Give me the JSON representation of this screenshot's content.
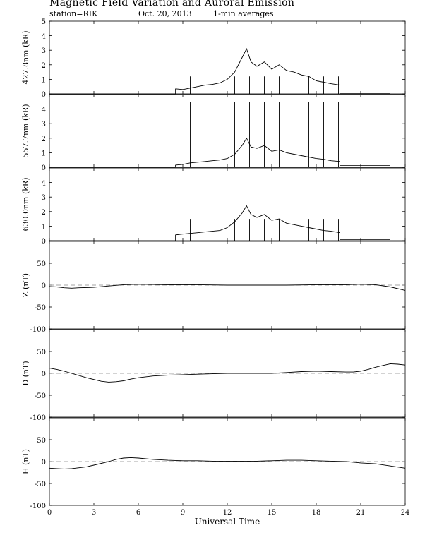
{
  "header": {
    "title": "Magnetic Field Variation and Auroral Emission",
    "station": "station=RIK",
    "date": "Oct. 20, 2013",
    "averaging": "1-min averages"
  },
  "chart_data": [
    {
      "type": "line",
      "ylabel": "427.8nm (kR)",
      "ylim": [
        0,
        5
      ],
      "yticks": [
        0,
        1,
        2,
        3,
        4,
        5
      ],
      "xlim": [
        0,
        24
      ],
      "baseline": 0,
      "x": [
        8.5,
        9.0,
        9.5,
        10.0,
        10.5,
        11.0,
        11.5,
        12.0,
        12.5,
        13.0,
        13.3,
        13.6,
        14.0,
        14.5,
        15.0,
        15.5,
        16.0,
        16.5,
        17.0,
        17.5,
        18.0,
        18.5,
        19.0,
        19.6
      ],
      "y": [
        0.35,
        0.3,
        0.4,
        0.5,
        0.6,
        0.65,
        0.75,
        1.0,
        1.5,
        2.5,
        3.1,
        2.2,
        1.9,
        2.2,
        1.7,
        2.0,
        1.6,
        1.5,
        1.3,
        1.2,
        0.9,
        0.8,
        0.7,
        0.6
      ],
      "spikes": [
        9.5,
        10.5,
        11.5,
        12.5,
        13.5,
        14.5,
        15.5,
        16.5,
        17.5,
        18.5,
        19.5
      ],
      "spike_height": 1.2,
      "after_value": 0.02
    },
    {
      "type": "line",
      "ylabel": "557.7nm (kR)",
      "ylim": [
        0,
        5
      ],
      "yticks": [
        0,
        1,
        2,
        3,
        4
      ],
      "xlim": [
        0,
        24
      ],
      "baseline": 0,
      "x": [
        8.5,
        9.0,
        9.5,
        10.0,
        10.5,
        11.0,
        11.5,
        12.0,
        12.5,
        13.0,
        13.3,
        13.6,
        14.0,
        14.5,
        15.0,
        15.5,
        16.0,
        16.5,
        17.0,
        17.5,
        18.0,
        18.5,
        19.0,
        19.6
      ],
      "y": [
        0.15,
        0.2,
        0.3,
        0.35,
        0.4,
        0.45,
        0.5,
        0.6,
        0.9,
        1.5,
        2.0,
        1.4,
        1.3,
        1.5,
        1.1,
        1.2,
        1.0,
        0.9,
        0.8,
        0.7,
        0.6,
        0.55,
        0.45,
        0.4
      ],
      "spikes": [
        9.5,
        10.5,
        11.5,
        12.5,
        13.5,
        14.5,
        15.5,
        16.5,
        17.5,
        18.5,
        19.5
      ],
      "spike_height": 4.5,
      "after_value": 0.12
    },
    {
      "type": "line",
      "ylabel": "630.0nm (kR)",
      "ylim": [
        0,
        5
      ],
      "yticks": [
        0,
        1,
        2,
        3,
        4
      ],
      "xlim": [
        0,
        24
      ],
      "baseline": 0,
      "x": [
        8.5,
        9.0,
        9.5,
        10.0,
        10.5,
        11.0,
        11.5,
        12.0,
        12.5,
        13.0,
        13.3,
        13.6,
        14.0,
        14.5,
        15.0,
        15.5,
        16.0,
        16.5,
        17.0,
        17.5,
        18.0,
        18.5,
        19.0,
        19.6
      ],
      "y": [
        0.4,
        0.45,
        0.5,
        0.55,
        0.6,
        0.65,
        0.7,
        0.9,
        1.3,
        1.9,
        2.4,
        1.8,
        1.6,
        1.8,
        1.4,
        1.5,
        1.2,
        1.1,
        1.0,
        0.9,
        0.8,
        0.7,
        0.65,
        0.55
      ],
      "spikes": [
        9.5,
        10.5,
        11.5,
        12.5,
        13.5,
        14.5,
        15.5,
        16.5,
        17.5,
        18.5,
        19.5
      ],
      "spike_height": 1.5,
      "after_value": 0.08
    },
    {
      "type": "line",
      "ylabel": "Z (nT)",
      "ylim": [
        -100,
        100
      ],
      "yticks": [
        -100,
        -50,
        0,
        50
      ],
      "xlim": [
        0,
        24
      ],
      "zero_line": true,
      "x": [
        0,
        0.5,
        1,
        1.5,
        2,
        3,
        4,
        5,
        6,
        8,
        10,
        12,
        14,
        16,
        18,
        20,
        21,
        22,
        23,
        24
      ],
      "y": [
        -3,
        -4,
        -6,
        -7,
        -6,
        -5,
        -2,
        1,
        2,
        1,
        1,
        0,
        0,
        0,
        1,
        1,
        2,
        1,
        -4,
        -12
      ]
    },
    {
      "type": "line",
      "ylabel": "D (nT)",
      "ylim": [
        -100,
        100
      ],
      "yticks": [
        -100,
        -50,
        0,
        50
      ],
      "xlim": [
        0,
        24
      ],
      "zero_line": true,
      "x": [
        0,
        0.5,
        1,
        1.5,
        2,
        2.5,
        3,
        3.5,
        4,
        4.5,
        5,
        5.5,
        6,
        7,
        8,
        9,
        10,
        11,
        12,
        13,
        14,
        15,
        16,
        17,
        18,
        19,
        20,
        20.5,
        21,
        21.5,
        22,
        22.5,
        23,
        23.5,
        24
      ],
      "y": [
        12,
        9,
        5,
        0,
        -5,
        -10,
        -14,
        -18,
        -20,
        -19,
        -17,
        -13,
        -10,
        -6,
        -4,
        -3,
        -2,
        -1,
        0,
        0,
        0,
        0,
        2,
        4,
        5,
        4,
        3,
        3,
        5,
        9,
        14,
        18,
        22,
        21,
        19
      ]
    },
    {
      "type": "line",
      "ylabel": "H (nT)",
      "ylim": [
        -100,
        100
      ],
      "yticks": [
        -100,
        -50,
        0,
        50
      ],
      "xlim": [
        0,
        24
      ],
      "zero_line": true,
      "x": [
        0,
        0.5,
        1,
        1.5,
        2,
        2.5,
        3,
        3.5,
        4,
        4.5,
        5,
        5.5,
        6,
        7,
        8,
        9,
        10,
        11,
        12,
        13,
        14,
        15,
        16,
        17,
        18,
        19,
        20,
        21,
        22,
        23,
        24
      ],
      "y": [
        -15,
        -16,
        -17,
        -16,
        -14,
        -12,
        -8,
        -4,
        0,
        5,
        8,
        9,
        8,
        5,
        3,
        2,
        2,
        1,
        1,
        1,
        1,
        2,
        3,
        3,
        2,
        1,
        0,
        -3,
        -5,
        -10,
        -15
      ]
    }
  ],
  "xaxis": {
    "label": "Universal Time",
    "ticks": [
      0,
      3,
      6,
      9,
      12,
      15,
      18,
      21,
      24
    ]
  },
  "colors": {
    "line": "#000000",
    "zero_line": "#888888"
  }
}
